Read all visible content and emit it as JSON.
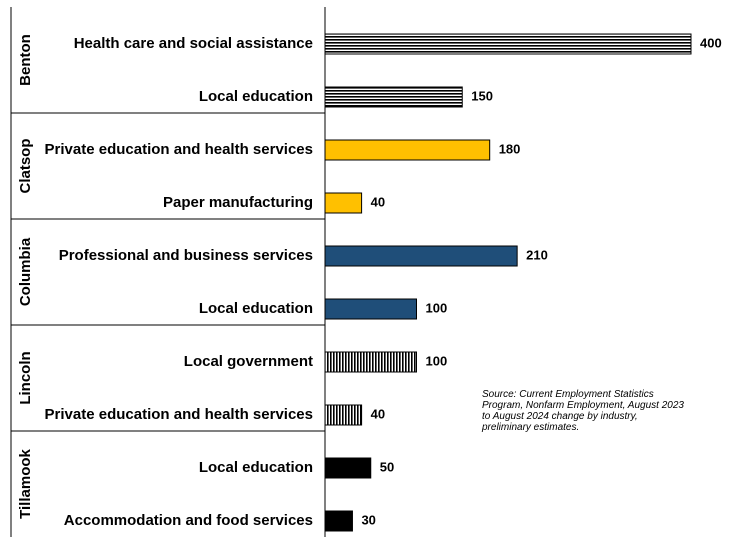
{
  "chart_data": {
    "type": "bar",
    "orientation": "horizontal",
    "xlim": [
      0,
      400
    ],
    "grid": false,
    "groups": [
      {
        "name": "Benton",
        "fill": "hlines",
        "color": "#000000",
        "bars": [
          {
            "label": "Health care and social assistance",
            "value": 400
          },
          {
            "label": "Local education",
            "value": 150
          }
        ]
      },
      {
        "name": "Clatsop",
        "fill": "solid",
        "color": "#FFC000",
        "bars": [
          {
            "label": "Private education and health services",
            "value": 180
          },
          {
            "label": "Paper manufacturing",
            "value": 40
          }
        ]
      },
      {
        "name": "Columbia",
        "fill": "solid",
        "color": "#1F4E79",
        "bars": [
          {
            "label": "Professional and business services",
            "value": 210
          },
          {
            "label": "Local education",
            "value": 100
          }
        ]
      },
      {
        "name": "Lincoln",
        "fill": "vlines",
        "color": "#000000",
        "bars": [
          {
            "label": "Local government",
            "value": 100
          },
          {
            "label": "Private education and health services",
            "value": 40
          }
        ]
      },
      {
        "name": "Tillamook",
        "fill": "solid",
        "color": "#000000",
        "bars": [
          {
            "label": "Local education",
            "value": 50
          },
          {
            "label": "Accommodation and food services",
            "value": 30
          }
        ]
      }
    ],
    "annotation": "Source: Current Employment Statistics Program, Nonfarm Employment, August 2023 to August 2024 change by industry, preliminary estimates."
  }
}
